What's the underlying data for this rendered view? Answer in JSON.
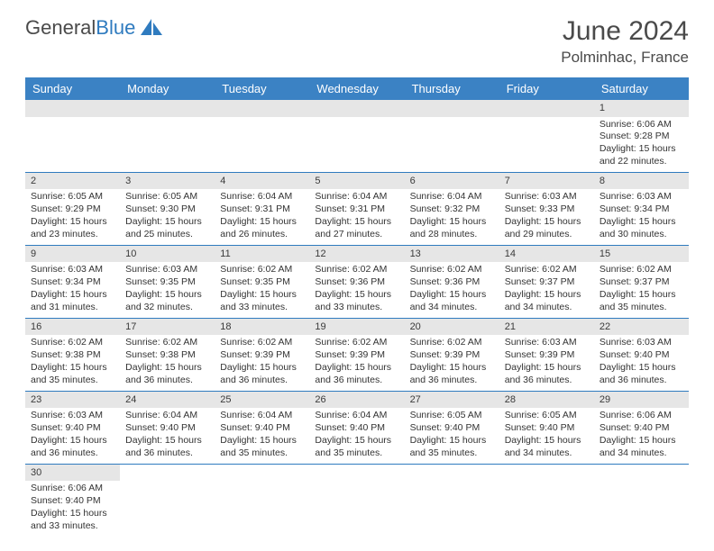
{
  "logo": {
    "text1": "General",
    "text2": "Blue",
    "sail_color": "#2f7bbf",
    "text_color": "#4a4a4a"
  },
  "header": {
    "title": "June 2024",
    "location": "Polminhac, France"
  },
  "colors": {
    "header_bg": "#3b82c4",
    "header_fg": "#ffffff",
    "daynum_bg": "#e6e6e6",
    "row_border": "#2f7bbf"
  },
  "weekdays": [
    "Sunday",
    "Monday",
    "Tuesday",
    "Wednesday",
    "Thursday",
    "Friday",
    "Saturday"
  ],
  "weeks": [
    [
      null,
      null,
      null,
      null,
      null,
      null,
      {
        "n": "1",
        "sr": "Sunrise: 6:06 AM",
        "ss": "Sunset: 9:28 PM",
        "dl": "Daylight: 15 hours and 22 minutes."
      }
    ],
    [
      {
        "n": "2",
        "sr": "Sunrise: 6:05 AM",
        "ss": "Sunset: 9:29 PM",
        "dl": "Daylight: 15 hours and 23 minutes."
      },
      {
        "n": "3",
        "sr": "Sunrise: 6:05 AM",
        "ss": "Sunset: 9:30 PM",
        "dl": "Daylight: 15 hours and 25 minutes."
      },
      {
        "n": "4",
        "sr": "Sunrise: 6:04 AM",
        "ss": "Sunset: 9:31 PM",
        "dl": "Daylight: 15 hours and 26 minutes."
      },
      {
        "n": "5",
        "sr": "Sunrise: 6:04 AM",
        "ss": "Sunset: 9:31 PM",
        "dl": "Daylight: 15 hours and 27 minutes."
      },
      {
        "n": "6",
        "sr": "Sunrise: 6:04 AM",
        "ss": "Sunset: 9:32 PM",
        "dl": "Daylight: 15 hours and 28 minutes."
      },
      {
        "n": "7",
        "sr": "Sunrise: 6:03 AM",
        "ss": "Sunset: 9:33 PM",
        "dl": "Daylight: 15 hours and 29 minutes."
      },
      {
        "n": "8",
        "sr": "Sunrise: 6:03 AM",
        "ss": "Sunset: 9:34 PM",
        "dl": "Daylight: 15 hours and 30 minutes."
      }
    ],
    [
      {
        "n": "9",
        "sr": "Sunrise: 6:03 AM",
        "ss": "Sunset: 9:34 PM",
        "dl": "Daylight: 15 hours and 31 minutes."
      },
      {
        "n": "10",
        "sr": "Sunrise: 6:03 AM",
        "ss": "Sunset: 9:35 PM",
        "dl": "Daylight: 15 hours and 32 minutes."
      },
      {
        "n": "11",
        "sr": "Sunrise: 6:02 AM",
        "ss": "Sunset: 9:35 PM",
        "dl": "Daylight: 15 hours and 33 minutes."
      },
      {
        "n": "12",
        "sr": "Sunrise: 6:02 AM",
        "ss": "Sunset: 9:36 PM",
        "dl": "Daylight: 15 hours and 33 minutes."
      },
      {
        "n": "13",
        "sr": "Sunrise: 6:02 AM",
        "ss": "Sunset: 9:36 PM",
        "dl": "Daylight: 15 hours and 34 minutes."
      },
      {
        "n": "14",
        "sr": "Sunrise: 6:02 AM",
        "ss": "Sunset: 9:37 PM",
        "dl": "Daylight: 15 hours and 34 minutes."
      },
      {
        "n": "15",
        "sr": "Sunrise: 6:02 AM",
        "ss": "Sunset: 9:37 PM",
        "dl": "Daylight: 15 hours and 35 minutes."
      }
    ],
    [
      {
        "n": "16",
        "sr": "Sunrise: 6:02 AM",
        "ss": "Sunset: 9:38 PM",
        "dl": "Daylight: 15 hours and 35 minutes."
      },
      {
        "n": "17",
        "sr": "Sunrise: 6:02 AM",
        "ss": "Sunset: 9:38 PM",
        "dl": "Daylight: 15 hours and 36 minutes."
      },
      {
        "n": "18",
        "sr": "Sunrise: 6:02 AM",
        "ss": "Sunset: 9:39 PM",
        "dl": "Daylight: 15 hours and 36 minutes."
      },
      {
        "n": "19",
        "sr": "Sunrise: 6:02 AM",
        "ss": "Sunset: 9:39 PM",
        "dl": "Daylight: 15 hours and 36 minutes."
      },
      {
        "n": "20",
        "sr": "Sunrise: 6:02 AM",
        "ss": "Sunset: 9:39 PM",
        "dl": "Daylight: 15 hours and 36 minutes."
      },
      {
        "n": "21",
        "sr": "Sunrise: 6:03 AM",
        "ss": "Sunset: 9:39 PM",
        "dl": "Daylight: 15 hours and 36 minutes."
      },
      {
        "n": "22",
        "sr": "Sunrise: 6:03 AM",
        "ss": "Sunset: 9:40 PM",
        "dl": "Daylight: 15 hours and 36 minutes."
      }
    ],
    [
      {
        "n": "23",
        "sr": "Sunrise: 6:03 AM",
        "ss": "Sunset: 9:40 PM",
        "dl": "Daylight: 15 hours and 36 minutes."
      },
      {
        "n": "24",
        "sr": "Sunrise: 6:04 AM",
        "ss": "Sunset: 9:40 PM",
        "dl": "Daylight: 15 hours and 36 minutes."
      },
      {
        "n": "25",
        "sr": "Sunrise: 6:04 AM",
        "ss": "Sunset: 9:40 PM",
        "dl": "Daylight: 15 hours and 35 minutes."
      },
      {
        "n": "26",
        "sr": "Sunrise: 6:04 AM",
        "ss": "Sunset: 9:40 PM",
        "dl": "Daylight: 15 hours and 35 minutes."
      },
      {
        "n": "27",
        "sr": "Sunrise: 6:05 AM",
        "ss": "Sunset: 9:40 PM",
        "dl": "Daylight: 15 hours and 35 minutes."
      },
      {
        "n": "28",
        "sr": "Sunrise: 6:05 AM",
        "ss": "Sunset: 9:40 PM",
        "dl": "Daylight: 15 hours and 34 minutes."
      },
      {
        "n": "29",
        "sr": "Sunrise: 6:06 AM",
        "ss": "Sunset: 9:40 PM",
        "dl": "Daylight: 15 hours and 34 minutes."
      }
    ],
    [
      {
        "n": "30",
        "sr": "Sunrise: 6:06 AM",
        "ss": "Sunset: 9:40 PM",
        "dl": "Daylight: 15 hours and 33 minutes."
      },
      null,
      null,
      null,
      null,
      null,
      null
    ]
  ]
}
